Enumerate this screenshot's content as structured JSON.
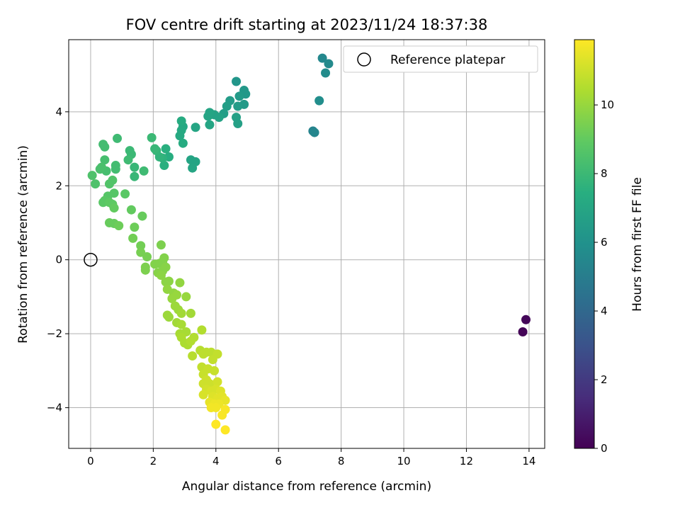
{
  "chart_data": {
    "type": "scatter",
    "title": "FOV centre drift starting at 2023/11/24 18:37:38",
    "xlabel": "Angular distance from reference (arcmin)",
    "ylabel": "Rotation from reference (arcmin)",
    "xlim": [
      -0.7,
      14.5
    ],
    "ylim": [
      -5.1,
      5.95
    ],
    "xticks": [
      0,
      2,
      4,
      6,
      8,
      10,
      12,
      14
    ],
    "yticks": [
      -4,
      -2,
      0,
      2,
      4
    ],
    "grid": true,
    "legend": {
      "position": "top-right",
      "entries": [
        {
          "label": "Reference platepar",
          "marker": "open-circle"
        }
      ]
    },
    "reference_point": {
      "x": 0,
      "y": 0
    },
    "colorbar": {
      "label": "Hours from first FF file",
      "range": [
        0,
        11.9
      ],
      "ticks": [
        0,
        2,
        4,
        6,
        8,
        10
      ],
      "colormap": "viridis"
    },
    "points": [
      {
        "x": 13.8,
        "y": -1.95,
        "h": 0.1
      },
      {
        "x": 13.9,
        "y": -1.62,
        "h": 0.2
      },
      {
        "x": 7.1,
        "y": 3.48,
        "h": 5.3
      },
      {
        "x": 7.15,
        "y": 3.44,
        "h": 5.4
      },
      {
        "x": 7.3,
        "y": 4.3,
        "h": 5.8
      },
      {
        "x": 7.4,
        "y": 5.45,
        "h": 5.5
      },
      {
        "x": 7.5,
        "y": 5.05,
        "h": 5.7
      },
      {
        "x": 7.6,
        "y": 5.3,
        "h": 5.6
      },
      {
        "x": 4.65,
        "y": 4.82,
        "h": 6.2
      },
      {
        "x": 4.9,
        "y": 4.58,
        "h": 6.3
      },
      {
        "x": 4.95,
        "y": 4.48,
        "h": 6.3
      },
      {
        "x": 4.75,
        "y": 4.42,
        "h": 6.4
      },
      {
        "x": 4.9,
        "y": 4.2,
        "h": 6.4
      },
      {
        "x": 4.7,
        "y": 4.15,
        "h": 6.5
      },
      {
        "x": 4.45,
        "y": 4.3,
        "h": 6.5
      },
      {
        "x": 4.35,
        "y": 4.15,
        "h": 6.6
      },
      {
        "x": 4.25,
        "y": 3.95,
        "h": 6.6
      },
      {
        "x": 4.65,
        "y": 3.85,
        "h": 6.7
      },
      {
        "x": 4.7,
        "y": 3.68,
        "h": 6.7
      },
      {
        "x": 4.1,
        "y": 3.85,
        "h": 6.8
      },
      {
        "x": 3.95,
        "y": 3.92,
        "h": 6.8
      },
      {
        "x": 3.8,
        "y": 3.98,
        "h": 6.9
      },
      {
        "x": 3.75,
        "y": 3.88,
        "h": 6.9
      },
      {
        "x": 3.8,
        "y": 3.65,
        "h": 7.0
      },
      {
        "x": 3.35,
        "y": 3.58,
        "h": 7.0
      },
      {
        "x": 3.2,
        "y": 2.7,
        "h": 6.9
      },
      {
        "x": 3.35,
        "y": 2.65,
        "h": 6.9
      },
      {
        "x": 3.25,
        "y": 2.48,
        "h": 7.0
      },
      {
        "x": 2.95,
        "y": 3.6,
        "h": 7.1
      },
      {
        "x": 2.9,
        "y": 3.5,
        "h": 7.2
      },
      {
        "x": 2.85,
        "y": 3.35,
        "h": 7.2
      },
      {
        "x": 2.9,
        "y": 3.75,
        "h": 7.3
      },
      {
        "x": 2.95,
        "y": 3.15,
        "h": 7.3
      },
      {
        "x": 2.5,
        "y": 2.78,
        "h": 7.4
      },
      {
        "x": 2.4,
        "y": 3.0,
        "h": 7.5
      },
      {
        "x": 2.35,
        "y": 2.55,
        "h": 7.5
      },
      {
        "x": 2.3,
        "y": 2.75,
        "h": 7.6
      },
      {
        "x": 2.2,
        "y": 2.78,
        "h": 7.7
      },
      {
        "x": 2.1,
        "y": 2.95,
        "h": 7.8
      },
      {
        "x": 2.05,
        "y": 3.0,
        "h": 7.9
      },
      {
        "x": 1.95,
        "y": 3.3,
        "h": 8.0
      },
      {
        "x": 1.7,
        "y": 2.4,
        "h": 8.1
      },
      {
        "x": 1.4,
        "y": 2.5,
        "h": 7.9
      },
      {
        "x": 1.4,
        "y": 2.25,
        "h": 7.9
      },
      {
        "x": 1.3,
        "y": 2.85,
        "h": 8.0
      },
      {
        "x": 1.25,
        "y": 2.95,
        "h": 8.0
      },
      {
        "x": 1.2,
        "y": 2.7,
        "h": 8.1
      },
      {
        "x": 0.85,
        "y": 3.28,
        "h": 8.1
      },
      {
        "x": 0.8,
        "y": 2.55,
        "h": 8.2
      },
      {
        "x": 0.8,
        "y": 2.45,
        "h": 8.2
      },
      {
        "x": 0.45,
        "y": 3.05,
        "h": 8.2
      },
      {
        "x": 0.4,
        "y": 3.12,
        "h": 8.2
      },
      {
        "x": 0.45,
        "y": 2.7,
        "h": 8.3
      },
      {
        "x": 0.5,
        "y": 2.4,
        "h": 8.3
      },
      {
        "x": 0.35,
        "y": 2.5,
        "h": 8.4
      },
      {
        "x": 0.3,
        "y": 2.45,
        "h": 8.4
      },
      {
        "x": 0.05,
        "y": 2.28,
        "h": 8.5
      },
      {
        "x": 0.15,
        "y": 2.05,
        "h": 8.5
      },
      {
        "x": 0.7,
        "y": 2.15,
        "h": 8.6
      },
      {
        "x": 0.6,
        "y": 2.05,
        "h": 8.6
      },
      {
        "x": 0.75,
        "y": 1.8,
        "h": 8.7
      },
      {
        "x": 0.55,
        "y": 1.72,
        "h": 8.7
      },
      {
        "x": 0.45,
        "y": 1.6,
        "h": 8.8
      },
      {
        "x": 0.4,
        "y": 1.55,
        "h": 8.8
      },
      {
        "x": 0.6,
        "y": 1.55,
        "h": 8.9
      },
      {
        "x": 0.7,
        "y": 1.5,
        "h": 8.9
      },
      {
        "x": 0.75,
        "y": 1.4,
        "h": 9.0
      },
      {
        "x": 1.1,
        "y": 1.78,
        "h": 8.8
      },
      {
        "x": 1.3,
        "y": 1.35,
        "h": 9.0
      },
      {
        "x": 1.65,
        "y": 1.18,
        "h": 9.1
      },
      {
        "x": 0.6,
        "y": 1.0,
        "h": 9.1
      },
      {
        "x": 0.75,
        "y": 0.98,
        "h": 9.1
      },
      {
        "x": 0.9,
        "y": 0.92,
        "h": 9.2
      },
      {
        "x": 1.4,
        "y": 0.88,
        "h": 9.2
      },
      {
        "x": 1.35,
        "y": 0.58,
        "h": 9.3
      },
      {
        "x": 1.6,
        "y": 0.38,
        "h": 9.3
      },
      {
        "x": 1.6,
        "y": 0.2,
        "h": 9.4
      },
      {
        "x": 1.8,
        "y": 0.08,
        "h": 9.4
      },
      {
        "x": 2.25,
        "y": 0.4,
        "h": 9.5
      },
      {
        "x": 1.75,
        "y": -0.2,
        "h": 9.5
      },
      {
        "x": 1.75,
        "y": -0.28,
        "h": 9.5
      },
      {
        "x": 2.05,
        "y": -0.12,
        "h": 9.6
      },
      {
        "x": 2.2,
        "y": -0.1,
        "h": 9.6
      },
      {
        "x": 2.3,
        "y": -0.05,
        "h": 9.6
      },
      {
        "x": 2.35,
        "y": 0.05,
        "h": 9.6
      },
      {
        "x": 2.4,
        "y": -0.2,
        "h": 9.7
      },
      {
        "x": 2.3,
        "y": -0.3,
        "h": 9.7
      },
      {
        "x": 2.15,
        "y": -0.35,
        "h": 9.7
      },
      {
        "x": 2.25,
        "y": -0.42,
        "h": 9.8
      },
      {
        "x": 2.4,
        "y": -0.6,
        "h": 9.8
      },
      {
        "x": 2.5,
        "y": -0.58,
        "h": 9.8
      },
      {
        "x": 2.85,
        "y": -0.62,
        "h": 9.9
      },
      {
        "x": 2.45,
        "y": -0.8,
        "h": 9.9
      },
      {
        "x": 2.65,
        "y": -0.9,
        "h": 9.9
      },
      {
        "x": 2.75,
        "y": -0.95,
        "h": 10.0
      },
      {
        "x": 3.05,
        "y": -1.0,
        "h": 10.0
      },
      {
        "x": 2.6,
        "y": -1.05,
        "h": 10.0
      },
      {
        "x": 2.7,
        "y": -1.25,
        "h": 10.1
      },
      {
        "x": 2.8,
        "y": -1.35,
        "h": 10.1
      },
      {
        "x": 2.45,
        "y": -1.5,
        "h": 10.1
      },
      {
        "x": 2.5,
        "y": -1.55,
        "h": 10.1
      },
      {
        "x": 2.9,
        "y": -1.45,
        "h": 10.2
      },
      {
        "x": 3.2,
        "y": -1.45,
        "h": 10.2
      },
      {
        "x": 2.75,
        "y": -1.7,
        "h": 10.2
      },
      {
        "x": 2.9,
        "y": -1.75,
        "h": 10.3
      },
      {
        "x": 2.85,
        "y": -2.0,
        "h": 10.3
      },
      {
        "x": 3.05,
        "y": -1.95,
        "h": 10.3
      },
      {
        "x": 2.9,
        "y": -2.1,
        "h": 10.4
      },
      {
        "x": 3.0,
        "y": -2.25,
        "h": 10.4
      },
      {
        "x": 3.1,
        "y": -2.3,
        "h": 10.4
      },
      {
        "x": 3.2,
        "y": -2.2,
        "h": 10.5
      },
      {
        "x": 3.3,
        "y": -2.1,
        "h": 10.5
      },
      {
        "x": 3.55,
        "y": -1.9,
        "h": 10.5
      },
      {
        "x": 3.25,
        "y": -2.6,
        "h": 10.6
      },
      {
        "x": 3.5,
        "y": -2.45,
        "h": 10.6
      },
      {
        "x": 3.6,
        "y": -2.55,
        "h": 10.7
      },
      {
        "x": 3.7,
        "y": -2.5,
        "h": 10.7
      },
      {
        "x": 3.85,
        "y": -2.5,
        "h": 10.7
      },
      {
        "x": 4.05,
        "y": -2.55,
        "h": 10.8
      },
      {
        "x": 3.9,
        "y": -2.7,
        "h": 10.8
      },
      {
        "x": 3.55,
        "y": -2.9,
        "h": 10.8
      },
      {
        "x": 3.75,
        "y": -2.95,
        "h": 10.9
      },
      {
        "x": 3.95,
        "y": -3.0,
        "h": 10.9
      },
      {
        "x": 3.6,
        "y": -3.1,
        "h": 10.9
      },
      {
        "x": 3.7,
        "y": -3.25,
        "h": 11.0
      },
      {
        "x": 3.6,
        "y": -3.35,
        "h": 11.0
      },
      {
        "x": 3.8,
        "y": -3.35,
        "h": 11.0
      },
      {
        "x": 4.05,
        "y": -3.3,
        "h": 11.1
      },
      {
        "x": 3.7,
        "y": -3.5,
        "h": 11.1
      },
      {
        "x": 3.6,
        "y": -3.65,
        "h": 11.2
      },
      {
        "x": 3.85,
        "y": -3.55,
        "h": 11.2
      },
      {
        "x": 4.0,
        "y": -3.5,
        "h": 11.2
      },
      {
        "x": 4.15,
        "y": -3.55,
        "h": 11.3
      },
      {
        "x": 3.9,
        "y": -3.7,
        "h": 11.3
      },
      {
        "x": 4.05,
        "y": -3.75,
        "h": 11.4
      },
      {
        "x": 4.2,
        "y": -3.7,
        "h": 11.4
      },
      {
        "x": 4.3,
        "y": -3.8,
        "h": 11.5
      },
      {
        "x": 3.8,
        "y": -3.85,
        "h": 11.5
      },
      {
        "x": 3.95,
        "y": -3.9,
        "h": 11.6
      },
      {
        "x": 4.1,
        "y": -3.9,
        "h": 11.6
      },
      {
        "x": 3.85,
        "y": -4.0,
        "h": 11.7
      },
      {
        "x": 4.0,
        "y": -4.0,
        "h": 11.7
      },
      {
        "x": 4.3,
        "y": -4.05,
        "h": 11.8
      },
      {
        "x": 4.2,
        "y": -4.2,
        "h": 11.8
      },
      {
        "x": 4.0,
        "y": -4.45,
        "h": 11.9
      },
      {
        "x": 4.3,
        "y": -4.6,
        "h": 11.9
      }
    ]
  }
}
